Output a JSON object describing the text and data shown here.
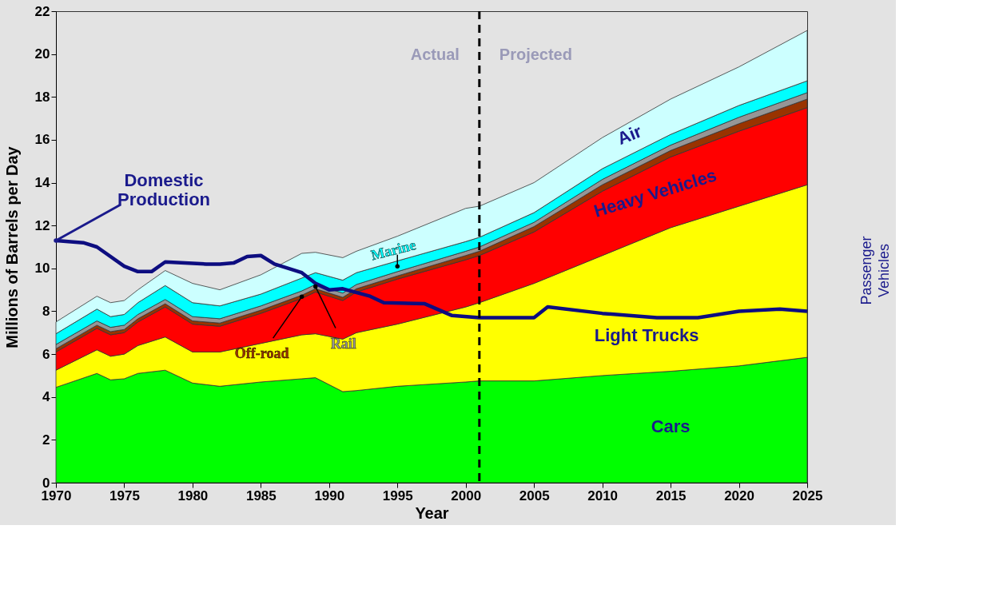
{
  "chart_data": {
    "type": "area",
    "stacked": true,
    "xlabel": "Year",
    "ylabel": "Millions of Barrels per Day",
    "x": [
      1970,
      1973,
      1974,
      1975,
      1976,
      1978,
      1980,
      1982,
      1985,
      1988,
      1989,
      1991,
      1992,
      1995,
      2000,
      2001,
      2005,
      2010,
      2015,
      2020,
      2025
    ],
    "series": [
      {
        "name": "Cars",
        "color": "#00ff00",
        "values": [
          4.45,
          5.1,
          4.8,
          4.85,
          5.1,
          5.25,
          4.65,
          4.5,
          4.7,
          4.85,
          4.9,
          4.25,
          4.3,
          4.5,
          4.7,
          4.75,
          4.75,
          5.0,
          5.2,
          5.45,
          5.85
        ]
      },
      {
        "name": "Light Trucks",
        "color": "#ffff00",
        "values": [
          0.8,
          1.1,
          1.1,
          1.15,
          1.3,
          1.55,
          1.45,
          1.6,
          1.8,
          2.05,
          2.05,
          2.45,
          2.7,
          2.9,
          3.5,
          3.65,
          4.55,
          5.6,
          6.7,
          7.45,
          8.05
        ]
      },
      {
        "name": "Heavy Vehicles",
        "color": "#ff0000",
        "values": [
          0.85,
          1.0,
          1.0,
          1.0,
          1.1,
          1.4,
          1.3,
          1.2,
          1.4,
          1.7,
          1.95,
          1.8,
          1.9,
          2.1,
          2.2,
          2.2,
          2.4,
          3.0,
          3.3,
          3.5,
          3.6
        ]
      },
      {
        "name": "Off-road",
        "color": "#993300",
        "values": [
          0.15,
          0.15,
          0.15,
          0.15,
          0.15,
          0.15,
          0.15,
          0.15,
          0.15,
          0.15,
          0.15,
          0.15,
          0.15,
          0.15,
          0.2,
          0.2,
          0.25,
          0.3,
          0.3,
          0.35,
          0.4
        ]
      },
      {
        "name": "Rail",
        "color": "#969696",
        "values": [
          0.2,
          0.2,
          0.2,
          0.2,
          0.2,
          0.2,
          0.2,
          0.2,
          0.2,
          0.2,
          0.2,
          0.2,
          0.2,
          0.2,
          0.2,
          0.2,
          0.2,
          0.25,
          0.25,
          0.3,
          0.3
        ]
      },
      {
        "name": "Marine",
        "color": "#00ffff",
        "values": [
          0.5,
          0.55,
          0.5,
          0.5,
          0.55,
          0.65,
          0.65,
          0.6,
          0.55,
          0.6,
          0.55,
          0.6,
          0.55,
          0.5,
          0.45,
          0.45,
          0.45,
          0.5,
          0.5,
          0.55,
          0.55
        ]
      },
      {
        "name": "Air",
        "color": "#ccffff",
        "values": [
          0.55,
          0.6,
          0.65,
          0.65,
          0.6,
          0.7,
          0.9,
          0.75,
          0.9,
          1.15,
          0.95,
          1.05,
          1.0,
          1.15,
          1.55,
          1.45,
          1.4,
          1.45,
          1.65,
          1.8,
          2.35
        ]
      },
      {
        "name": "Domestic Production",
        "type": "line",
        "color": "#0d0d80",
        "x": [
          1970,
          1972,
          1973,
          1975,
          1976,
          1977,
          1978,
          1981,
          1982,
          1983,
          1984,
          1985,
          1986,
          1988,
          1989,
          1990,
          1991,
          1993,
          1994,
          1997,
          1999,
          2001,
          2005,
          2006,
          2010,
          2014,
          2017,
          2020,
          2023,
          2025
        ],
        "values": [
          11.3,
          11.2,
          11.0,
          10.1,
          9.85,
          9.85,
          10.3,
          10.2,
          10.2,
          10.25,
          10.55,
          10.6,
          10.2,
          9.8,
          9.3,
          9.0,
          9.05,
          8.7,
          8.4,
          8.35,
          7.8,
          7.7,
          7.7,
          8.2,
          7.9,
          7.7,
          7.7,
          8.0,
          8.1,
          8.0
        ]
      }
    ],
    "xlim": [
      1970,
      2025
    ],
    "xticks": [
      1970,
      1975,
      1980,
      1985,
      1990,
      1995,
      2000,
      2005,
      2010,
      2015,
      2020,
      2025
    ],
    "ylim": [
      0,
      22
    ],
    "yticks": [
      0,
      2,
      4,
      6,
      8,
      10,
      12,
      14,
      16,
      18,
      20,
      22
    ],
    "grid": false,
    "ref_lines": [
      {
        "axis": "x",
        "value": 2001,
        "color": "#000000",
        "line_style": "dashed"
      }
    ],
    "annotations": [
      "Actual",
      "Projected",
      "Passenger Vehicles"
    ]
  }
}
